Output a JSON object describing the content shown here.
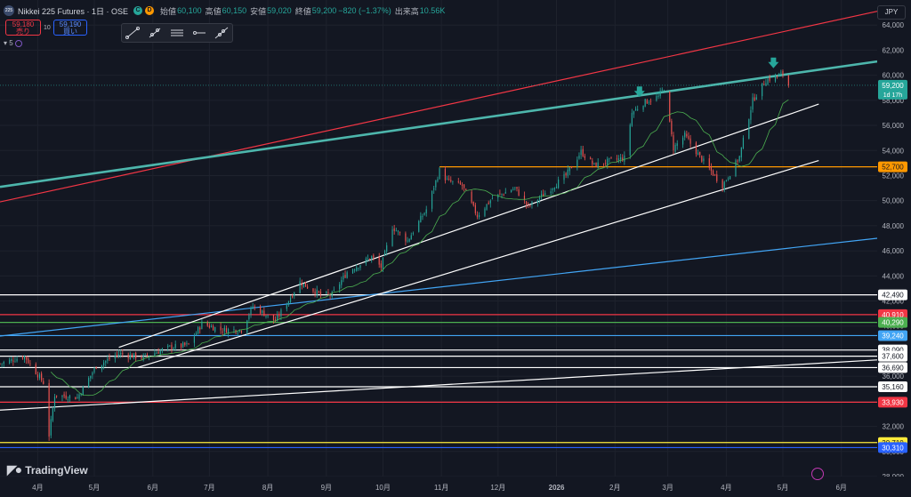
{
  "header": {
    "symbol_badge": "225",
    "title": "Nikkei 225 Futures · 1日 · OSE",
    "badge_c": "C",
    "badge_d": "D",
    "open_label": "始値",
    "open": "60,100",
    "high_label": "高値",
    "high": "60,150",
    "low_label": "安値",
    "low": "59,020",
    "close_label": "終値",
    "close": "59,200",
    "change": "−820 (−1.37%)",
    "volume_label": "出来高",
    "volume": "10.56K"
  },
  "trade": {
    "sell_price": "59,180",
    "sell_label": "売り",
    "spread": "10",
    "buy_price": "59,190",
    "buy_label": "買い"
  },
  "indicator_count": "5",
  "currency": "JPY",
  "branding": "TradingView",
  "colors": {
    "up": "#26a69a",
    "down": "#ef5350",
    "ma": "#4caf50",
    "teal": "#4db6ac",
    "red": "#f23645",
    "orange": "#ff9800",
    "blue": "#42a5f5",
    "white": "#ffffff",
    "yellow": "#ffeb3b",
    "royal": "#2962ff",
    "bg": "#131722"
  },
  "chart_data": {
    "type": "candlestick",
    "y_axis": {
      "min": 28000,
      "max": 66000,
      "ticks": [
        28000,
        30000,
        32000,
        34000,
        36000,
        38000,
        40000,
        42000,
        44000,
        46000,
        48000,
        50000,
        52000,
        54000,
        56000,
        58000,
        60000,
        62000,
        64000
      ],
      "tick_labels": [
        "28,000",
        "30,000",
        "32,000",
        "34,000",
        "36,000",
        "38,000",
        "40,000",
        "42,000",
        "44,000",
        "46,000",
        "48,000",
        "50,000",
        "52,000",
        "54,000",
        "56,000",
        "58,000",
        "60,000",
        "62,000",
        "64,000"
      ]
    },
    "x_axis": {
      "labels": [
        "4月",
        "5月",
        "6月",
        "7月",
        "8月",
        "9月",
        "10月",
        "11月",
        "12月",
        "2026",
        "2月",
        "3月",
        "4月",
        "5月",
        "6月"
      ],
      "dates": [
        "2025-04-01",
        "2025-05-01",
        "2025-06-01",
        "2025-07-01",
        "2025-08-01",
        "2025-09-01",
        "2025-10-01",
        "2025-11-01",
        "2025-12-01",
        "2026-01-01",
        "2026-02-01",
        "2026-03-01",
        "2026-04-01",
        "2026-05-01",
        "2026-06-01"
      ],
      "start": "2025-03-12",
      "end": "2026-06-20"
    },
    "price_path": [
      [
        "2025-03-12",
        37000
      ],
      [
        "2025-03-25",
        37600
      ],
      [
        "2025-04-04",
        35500
      ],
      [
        "2025-04-07",
        31300
      ],
      [
        "2025-04-10",
        34500
      ],
      [
        "2025-04-22",
        34300
      ],
      [
        "2025-05-02",
        36800
      ],
      [
        "2025-05-14",
        37800
      ],
      [
        "2025-05-26",
        37500
      ],
      [
        "2025-06-10",
        38300
      ],
      [
        "2025-06-20",
        38500
      ],
      [
        "2025-06-27",
        40200
      ],
      [
        "2025-07-07",
        39700
      ],
      [
        "2025-07-18",
        39700
      ],
      [
        "2025-07-24",
        41600
      ],
      [
        "2025-08-05",
        40400
      ],
      [
        "2025-08-18",
        43500
      ],
      [
        "2025-08-29",
        42500
      ],
      [
        "2025-09-04",
        42500
      ],
      [
        "2025-09-12",
        44300
      ],
      [
        "2025-09-25",
        45500
      ],
      [
        "2025-09-30",
        44700
      ],
      [
        "2025-10-06",
        47900
      ],
      [
        "2025-10-14",
        46800
      ],
      [
        "2025-10-24",
        49300
      ],
      [
        "2025-10-31",
        52400
      ],
      [
        "2025-11-04",
        51600
      ],
      [
        "2025-11-12",
        51200
      ],
      [
        "2025-11-20",
        48800
      ],
      [
        "2025-11-28",
        50200
      ],
      [
        "2025-12-10",
        51000
      ],
      [
        "2025-12-17",
        49500
      ],
      [
        "2025-12-26",
        50600
      ],
      [
        "2026-01-06",
        52000
      ],
      [
        "2026-01-14",
        53900
      ],
      [
        "2026-01-21",
        52800
      ],
      [
        "2026-01-30",
        53200
      ],
      [
        "2026-02-06",
        53400
      ],
      [
        "2026-02-10",
        57000
      ],
      [
        "2026-02-16",
        57800
      ],
      [
        "2026-02-24",
        58300
      ],
      [
        "2026-02-27",
        59000
      ],
      [
        "2026-03-04",
        54200
      ],
      [
        "2026-03-10",
        55200
      ],
      [
        "2026-03-18",
        53500
      ],
      [
        "2026-03-30",
        51200
      ],
      [
        "2026-04-03",
        52200
      ],
      [
        "2026-04-08",
        53500
      ],
      [
        "2026-04-15",
        58000
      ],
      [
        "2026-04-22",
        59600
      ],
      [
        "2026-04-27",
        59900
      ],
      [
        "2026-05-01",
        60100
      ],
      [
        "2026-05-04",
        59200
      ]
    ],
    "last_price": 59200,
    "last_price_label": "59,200",
    "countdown_label": "1d 17h",
    "horizontal_levels": [
      {
        "value": 52700,
        "label": "52,700",
        "color": "#ff9800"
      },
      {
        "value": 42490,
        "label": "42,490",
        "color": "#ffffff"
      },
      {
        "value": 40910,
        "label": "40,910",
        "color": "#f23645"
      },
      {
        "value": 40290,
        "label": "40,290",
        "color": "#4caf50"
      },
      {
        "value": 39240,
        "label": "39,240",
        "color": "#42a5f5"
      },
      {
        "value": 38090,
        "label": "38,090",
        "color": "#ffffff"
      },
      {
        "value": 37600,
        "label": "37,600",
        "color": "#ffffff"
      },
      {
        "value": 36690,
        "label": "36,690",
        "color": "#ffffff"
      },
      {
        "value": 35160,
        "label": "35,160",
        "color": "#ffffff"
      },
      {
        "value": 33930,
        "label": "33,930",
        "color": "#f23645"
      },
      {
        "value": 30710,
        "label": "30,710",
        "color": "#ffeb3b"
      },
      {
        "value": 30310,
        "label": "30,310",
        "color": "#2962ff"
      }
    ],
    "trend_lines": [
      {
        "color": "#f23645",
        "p1": [
          "2025-03-12",
          49900
        ],
        "p2": [
          "2026-06-20",
          65100
        ]
      },
      {
        "color": "#4db6ac",
        "p1": [
          "2025-03-12",
          51100
        ],
        "p2": [
          "2026-06-20",
          61100
        ]
      },
      {
        "color": "#42a5f5",
        "p1": [
          "2025-03-12",
          39200
        ],
        "p2": [
          "2026-06-20",
          47000
        ]
      },
      {
        "color": "#ffffff",
        "p1": [
          "2025-05-14",
          38300
        ],
        "p2": [
          "2026-05-20",
          57700
        ]
      },
      {
        "color": "#ffffff",
        "p1": [
          "2025-05-24",
          36700
        ],
        "p2": [
          "2026-05-20",
          53200
        ]
      },
      {
        "color": "#ffffff",
        "p1": [
          "2025-03-12",
          33300
        ],
        "p2": [
          "2026-06-20",
          37300
        ]
      }
    ],
    "arrows": [
      [
        "2026-02-14",
        58400
      ],
      [
        "2026-04-26",
        60700
      ]
    ]
  }
}
